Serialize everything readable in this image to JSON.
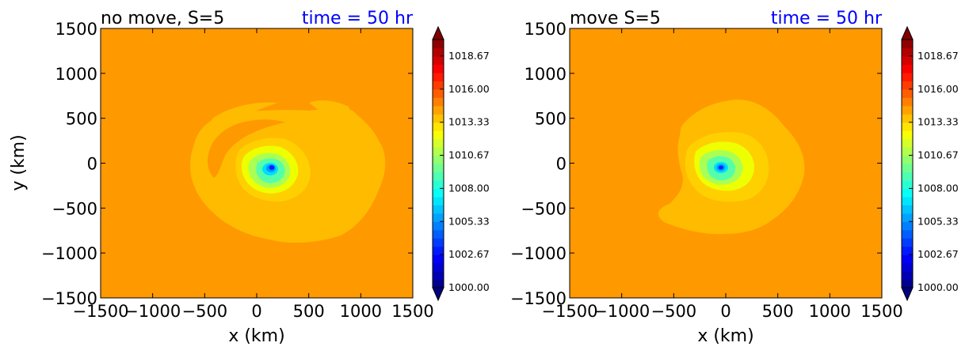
{
  "figure": {
    "colorbar_ticks": [
      "1018.67",
      "1016.00",
      "1013.33",
      "1010.67",
      "1008.00",
      "1005.33",
      "1002.67",
      "1000.00"
    ],
    "colormap": "jet",
    "colorbar_levels": 30,
    "colorbar_range": [
      1000.0,
      1020.0
    ]
  },
  "chart_data": [
    {
      "type": "heatmap",
      "title": "no move, S=5",
      "title_right": "time = 50 hr",
      "title_right_color": "#0000ff",
      "xlabel": "x (km)",
      "ylabel": "y (km)",
      "xlim": [
        -1500,
        1500
      ],
      "ylim": [
        -1500,
        1500
      ],
      "xticks": [
        "−1500",
        "−1000",
        "−500",
        "0",
        "500",
        "1000",
        "1500"
      ],
      "yticks": [
        "1500",
        "1000",
        "500",
        "0",
        "−500",
        "−1000",
        "−1500"
      ],
      "background_value": 1016.0,
      "center_km": [
        130,
        -60
      ],
      "center_min_value": 1000.5,
      "outer_envelope_value": 1015.0
    },
    {
      "type": "heatmap",
      "title": "move S=5",
      "title_right": "time = 50 hr",
      "title_right_color": "#0000ff",
      "xlabel": "x (km)",
      "ylabel": "",
      "xlim": [
        -1500,
        1500
      ],
      "ylim": [
        -1500,
        1500
      ],
      "xticks": [
        "−1500",
        "−1000",
        "−500",
        "0",
        "500",
        "1000",
        "1500"
      ],
      "yticks": [
        "1500",
        "1000",
        "500",
        "0",
        "−500",
        "−1000",
        "−1500"
      ],
      "background_value": 1016.0,
      "center_km": [
        -50,
        -50
      ],
      "center_min_value": 1000.5,
      "outer_envelope_value": 1015.0
    }
  ]
}
